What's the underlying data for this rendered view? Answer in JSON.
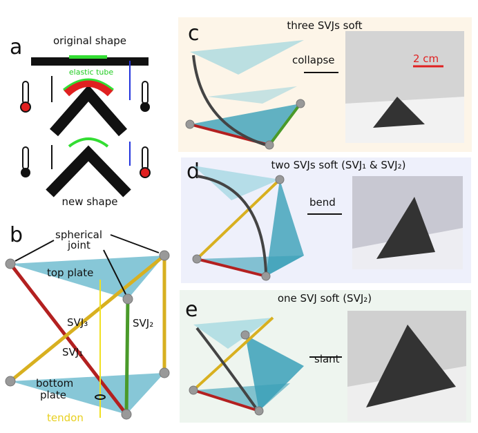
{
  "panel_a": {
    "label": "a",
    "original_shape": "original shape",
    "elastic_tube": "elastic tube",
    "new_shape": "new shape"
  },
  "panel_b": {
    "label": "b",
    "spherical_joint": [
      "spherical",
      "joint"
    ],
    "top_plate": "top plate",
    "svj3": "SVJ₃",
    "svj1": "SVJ₁",
    "svj2": "SVJ₂",
    "bottom_plate": [
      "bottom",
      "plate"
    ],
    "tendon": "tendon"
  },
  "panel_c": {
    "label": "c",
    "title": "three SVJs soft",
    "action": "collapse",
    "scale_bar": "2 cm"
  },
  "panel_d": {
    "label": "d",
    "title": "two SVJs soft (SVJ₁ & SVJ₂)",
    "action": "bend"
  },
  "panel_e": {
    "label": "e",
    "title": "one SVJ soft (SVJ₂)",
    "action": "slant"
  }
}
